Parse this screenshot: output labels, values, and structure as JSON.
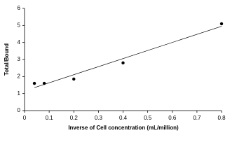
{
  "chart_data": {
    "type": "scatter",
    "x_label": "Inverse of Cell concentration (mL/million)",
    "y_label": "Total/Bound",
    "x": [
      0.04,
      0.08,
      0.2,
      0.4,
      0.8
    ],
    "values": [
      1.6,
      1.6,
      1.85,
      2.8,
      5.1
    ],
    "color": "#000000",
    "trendline": {
      "x": [
        0.04,
        0.8
      ],
      "values": [
        1.35,
        4.95
      ],
      "color": "#000000"
    },
    "xlim": [
      0,
      0.8
    ],
    "xticks": [
      0,
      0.1,
      0.2,
      0.3,
      0.4,
      0.5,
      0.6,
      0.7,
      0.8
    ],
    "ylim": [
      0,
      6
    ],
    "yticks": [
      0,
      1,
      2,
      3,
      4,
      5,
      6
    ],
    "grid": false
  }
}
